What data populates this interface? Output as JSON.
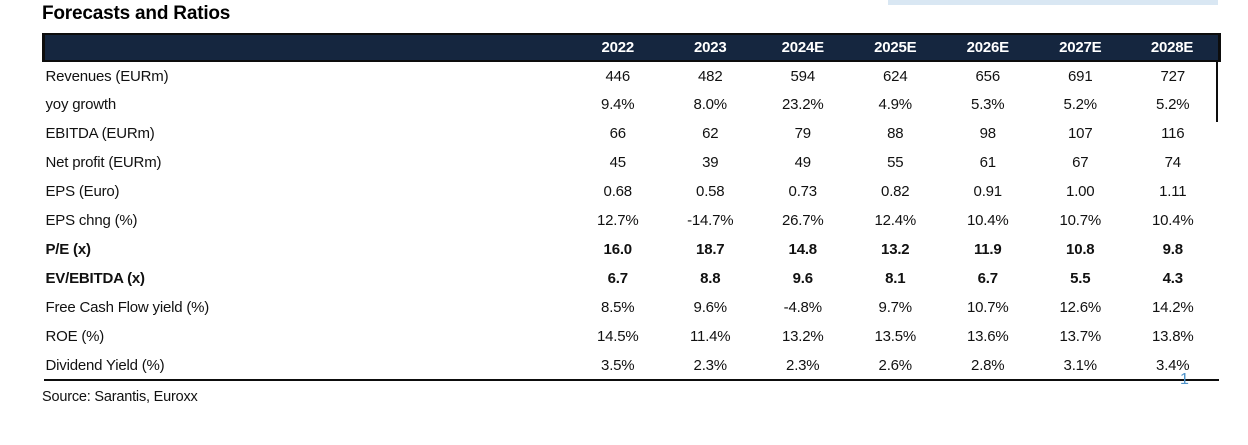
{
  "page": {
    "title": "Forecasts and Ratios",
    "source": "Source: Sarantis, Euroxx",
    "page_number": "1"
  },
  "colors": {
    "header_bg": "#15263f",
    "header_text": "#ffffff",
    "top_strip_blue": "#d9e7f3",
    "page_number_blue": "#4e93c9",
    "rule_black": "#0d0d0d"
  },
  "table": {
    "columns": [
      "2022",
      "2023",
      "2024E",
      "2025E",
      "2026E",
      "2027E",
      "2028E"
    ],
    "rows": [
      {
        "label": "Revenues (EURm)",
        "bold": false,
        "values": [
          "446",
          "482",
          "594",
          "624",
          "656",
          "691",
          "727"
        ]
      },
      {
        "label": "yoy growth",
        "bold": false,
        "values": [
          "9.4%",
          "8.0%",
          "23.2%",
          "4.9%",
          "5.3%",
          "5.2%",
          "5.2%"
        ]
      },
      {
        "label": "EBITDA (EURm)",
        "bold": false,
        "values": [
          "66",
          "62",
          "79",
          "88",
          "98",
          "107",
          "116"
        ]
      },
      {
        "label": "Net profit (EURm)",
        "bold": false,
        "values": [
          "45",
          "39",
          "49",
          "55",
          "61",
          "67",
          "74"
        ]
      },
      {
        "label": "EPS (Euro)",
        "bold": false,
        "values": [
          "0.68",
          "0.58",
          "0.73",
          "0.82",
          "0.91",
          "1.00",
          "1.11"
        ]
      },
      {
        "label": "EPS chng (%)",
        "bold": false,
        "values": [
          "12.7%",
          "-14.7%",
          "26.7%",
          "12.4%",
          "10.4%",
          "10.7%",
          "10.4%"
        ]
      },
      {
        "label": "P/E (x)",
        "bold": true,
        "values": [
          "16.0",
          "18.7",
          "14.8",
          "13.2",
          "11.9",
          "10.8",
          "9.8"
        ]
      },
      {
        "label": "EV/EBITDA (x)",
        "bold": true,
        "values": [
          "6.7",
          "8.8",
          "9.6",
          "8.1",
          "6.7",
          "5.5",
          "4.3"
        ]
      },
      {
        "label": "Free Cash Flow yield (%)",
        "bold": false,
        "values": [
          "8.5%",
          "9.6%",
          "-4.8%",
          "9.7%",
          "10.7%",
          "12.6%",
          "14.2%"
        ]
      },
      {
        "label": "ROE (%)",
        "bold": false,
        "values": [
          "14.5%",
          "11.4%",
          "13.2%",
          "13.5%",
          "13.6%",
          "13.7%",
          "13.8%"
        ]
      },
      {
        "label": "Dividend Yield (%)",
        "bold": false,
        "values": [
          "3.5%",
          "2.3%",
          "2.3%",
          "2.6%",
          "2.8%",
          "3.1%",
          "3.4%"
        ]
      }
    ]
  }
}
